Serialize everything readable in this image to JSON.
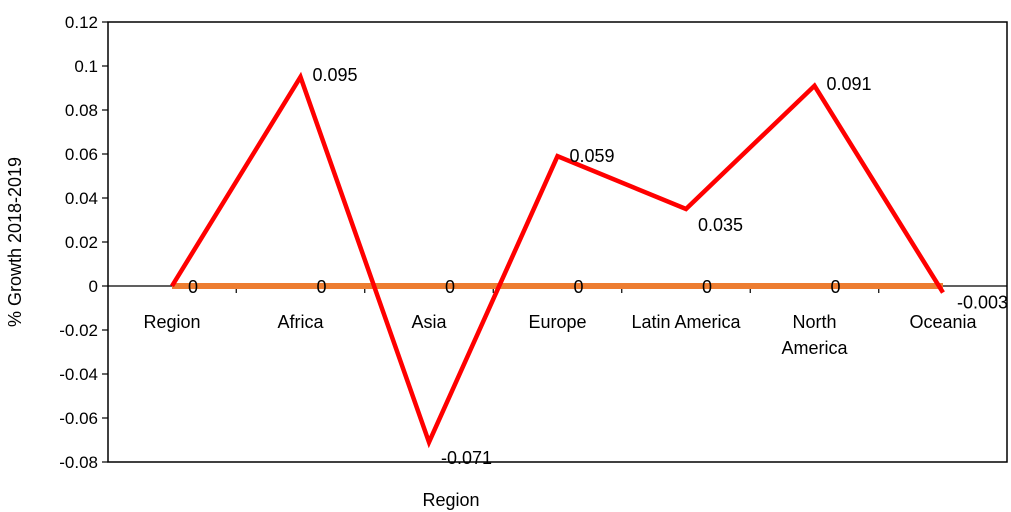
{
  "chart_data": {
    "type": "line",
    "title": "",
    "xlabel": "Region",
    "ylabel": "% Growth 2018-2019",
    "categories": [
      "Region",
      "Africa",
      "Asia",
      "Europe",
      "Latin America",
      "North America",
      "Oceania"
    ],
    "category_lines": [
      [
        "Region"
      ],
      [
        "Africa"
      ],
      [
        "Asia"
      ],
      [
        "Europe"
      ],
      [
        "Latin America"
      ],
      [
        "North",
        "America"
      ],
      [
        "Oceania"
      ]
    ],
    "ylim": [
      -0.08,
      0.12
    ],
    "yticks": [
      "-0.08",
      "-0.06",
      "-0.04",
      "-0.02",
      "0",
      "0.02",
      "0.04",
      "0.06",
      "0.08",
      "0.1",
      "0.12"
    ],
    "grid": false,
    "legend": "none",
    "series": [
      {
        "color": "#ff0000",
        "values": [
          0,
          0.095,
          -0.071,
          0.059,
          0.035,
          0.091,
          -0.003
        ],
        "labels": [
          "",
          "0.095",
          "-0.071",
          "0.059",
          "0.035",
          "0.091",
          "-0.003"
        ]
      },
      {
        "color": "#ed7d31",
        "values": [
          0,
          0,
          0,
          0,
          0,
          0,
          0
        ],
        "labels": [
          "0",
          "0",
          "0",
          "0",
          "0",
          "0",
          ""
        ]
      }
    ]
  }
}
